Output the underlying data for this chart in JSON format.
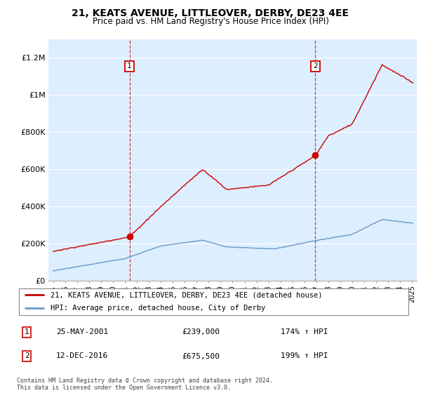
{
  "title": "21, KEATS AVENUE, LITTLEOVER, DERBY, DE23 4EE",
  "subtitle": "Price paid vs. HM Land Registry's House Price Index (HPI)",
  "legend_line1": "21, KEATS AVENUE, LITTLEOVER, DERBY, DE23 4EE (detached house)",
  "legend_line2": "HPI: Average price, detached house, City of Derby",
  "sale1_date": "25-MAY-2001",
  "sale1_price": "£239,000",
  "sale1_hpi": "174% ↑ HPI",
  "sale2_date": "12-DEC-2016",
  "sale2_price": "£675,500",
  "sale2_hpi": "199% ↑ HPI",
  "footer": "Contains HM Land Registry data © Crown copyright and database right 2024.\nThis data is licensed under the Open Government Licence v3.0.",
  "ylim": [
    0,
    1300000
  ],
  "yticks": [
    0,
    200000,
    400000,
    600000,
    800000,
    1000000,
    1200000
  ],
  "ytick_labels": [
    "£0",
    "£200K",
    "£400K",
    "£600K",
    "£800K",
    "£1M",
    "£1.2M"
  ],
  "red_color": "#cc0000",
  "blue_color": "#6699cc",
  "sale1_year": 2001.38,
  "sale2_year": 2016.92,
  "bg_color": "#ddeeff",
  "grid_color": "#ffffff"
}
